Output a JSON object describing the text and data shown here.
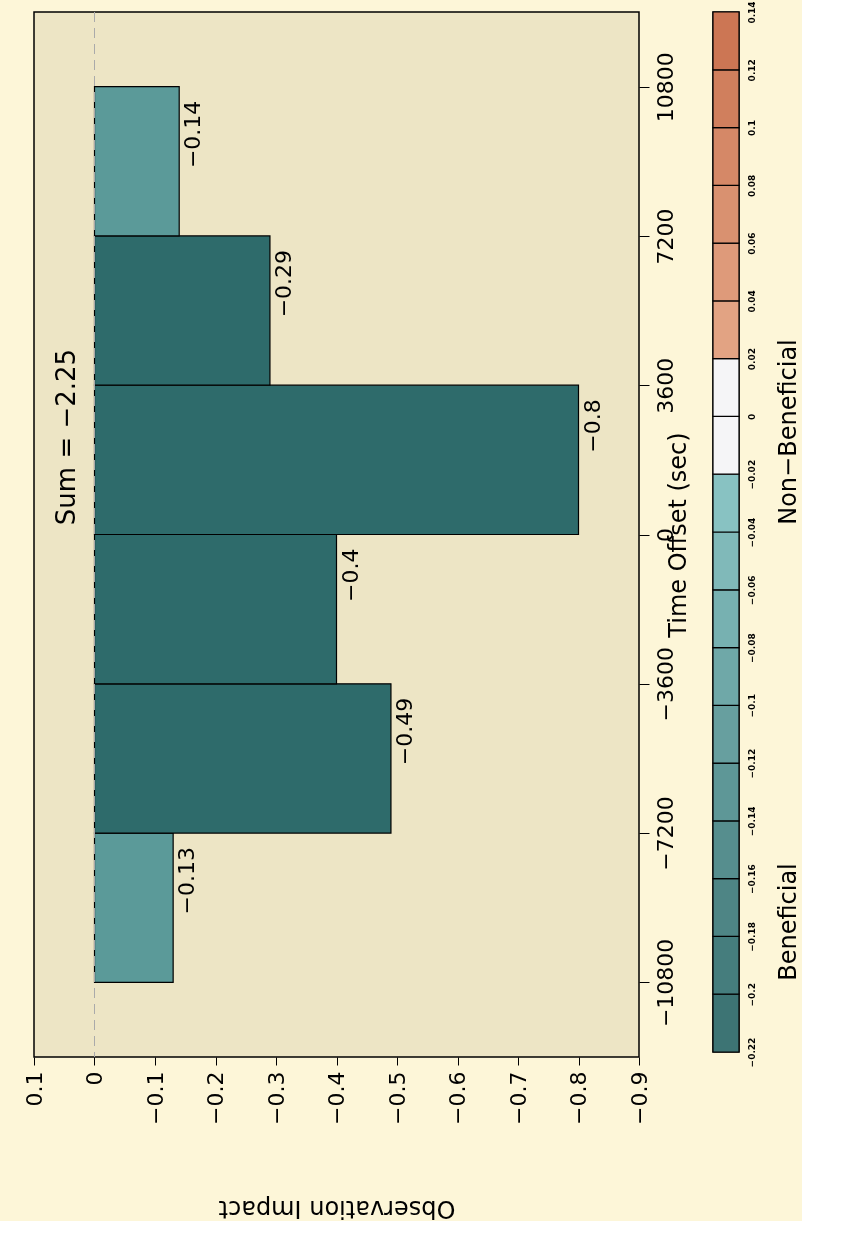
{
  "chart_data": {
    "type": "histogram",
    "orientation": "horizontal",
    "bins": [
      -10800,
      -7200,
      -3600,
      0,
      3600,
      7200,
      10800
    ],
    "values": [
      -0.13,
      -0.49,
      -0.4,
      -0.8,
      -0.29,
      -0.14
    ],
    "colors": [
      "#5b9a99",
      "#2e6b6b",
      "#2e6b6b",
      "#2e6b6b",
      "#2e6b6b",
      "#5b9a99"
    ],
    "data_labels": true,
    "xlim": [
      0.1,
      -0.9
    ],
    "xticks": [
      0.1,
      0,
      -0.1,
      -0.2,
      -0.3,
      -0.4,
      -0.5,
      -0.6,
      -0.7,
      -0.8,
      -0.9
    ],
    "ylim": [
      -12600,
      12600
    ],
    "yticks": [
      -10800,
      -7200,
      -3600,
      0,
      3600,
      7200,
      10800
    ],
    "xlabel": "Observation Impact",
    "ylabel": "Time Offset (sec)",
    "ref_lines": [
      {
        "axis": "x",
        "value": 0,
        "color": "#aaaaaa",
        "line_style": "dashed"
      }
    ],
    "clim": [
      -0.22,
      0.14
    ],
    "cticks": [
      -0.22,
      -0.2,
      -0.18,
      -0.16,
      -0.14,
      -0.12,
      -0.1,
      -0.08,
      -0.06,
      -0.04,
      -0.02,
      0,
      0.02,
      0.04,
      0.06,
      0.08,
      0.1,
      0.12,
      0.14
    ],
    "annotations": [
      "Sum = −2.25",
      "Beneficial",
      "Non−Beneficial"
    ]
  }
}
